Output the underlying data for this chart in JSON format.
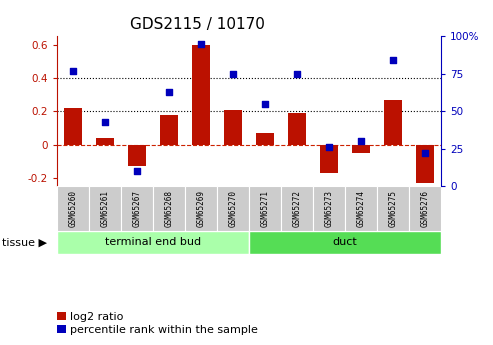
{
  "title": "GDS2115 / 10170",
  "samples": [
    "GSM65260",
    "GSM65261",
    "GSM65267",
    "GSM65268",
    "GSM65269",
    "GSM65270",
    "GSM65271",
    "GSM65272",
    "GSM65273",
    "GSM65274",
    "GSM65275",
    "GSM65276"
  ],
  "log2_ratio": [
    0.22,
    0.04,
    -0.13,
    0.18,
    0.6,
    0.21,
    0.07,
    0.19,
    -0.17,
    -0.05,
    0.27,
    -0.23
  ],
  "percentile_rank": [
    77,
    43,
    10,
    63,
    95,
    75,
    55,
    75,
    26,
    30,
    84,
    22
  ],
  "groups": [
    {
      "label": "terminal end bud",
      "start": 0,
      "end": 6,
      "color": "#AAFFAA"
    },
    {
      "label": "duct",
      "start": 6,
      "end": 12,
      "color": "#55DD55"
    }
  ],
  "ylim_left": [
    -0.25,
    0.65
  ],
  "ylim_right": [
    0,
    100
  ],
  "yticks_left": [
    -0.2,
    0.0,
    0.2,
    0.4,
    0.6
  ],
  "yticks_right": [
    0,
    25,
    50,
    75,
    100
  ],
  "ytick_right_labels": [
    "0",
    "25",
    "50",
    "75",
    "100%"
  ],
  "hlines": [
    0.2,
    0.4
  ],
  "bar_color": "#BB1100",
  "dot_color": "#0000BB",
  "zero_line_color": "#CC2200",
  "grid_color": "#000000",
  "bg_color": "#FFFFFF",
  "tissue_label": "tissue",
  "legend_log2": "log2 ratio",
  "legend_pct": "percentile rank within the sample",
  "title_fontsize": 11,
  "axis_fontsize": 8,
  "tick_fontsize": 7.5,
  "legend_fontsize": 8,
  "sample_box_color": "#CCCCCC",
  "n_groups": 2,
  "group_split": 6
}
